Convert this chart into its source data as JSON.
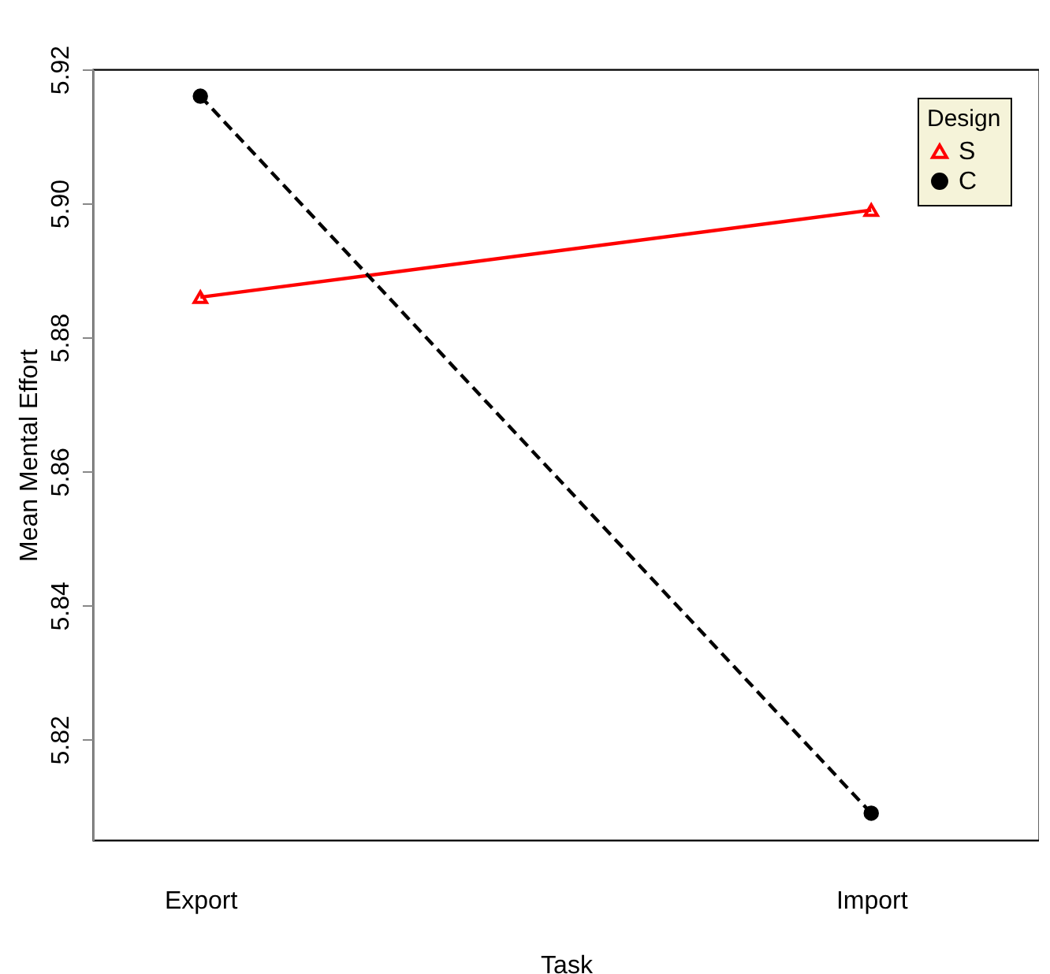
{
  "chart_data": {
    "type": "line",
    "xlabel": "Task",
    "ylabel": "Mean Mental Effort",
    "legend_title": "Design",
    "categories": [
      "Export",
      "Import"
    ],
    "series": [
      {
        "name": "S",
        "color": "#ff0000",
        "values": [
          5.886,
          5.899
        ],
        "marker": "triangle",
        "line_style": "solid"
      },
      {
        "name": "C",
        "color": "#000000",
        "values": [
          5.916,
          5.809
        ],
        "marker": "circle",
        "line_style": "dashed"
      }
    ],
    "ylim": [
      5.805,
      5.92
    ],
    "yticks": [
      {
        "value": 5.82,
        "label": "5.82"
      },
      {
        "value": 5.84,
        "label": "5.84"
      },
      {
        "value": 5.86,
        "label": "5.86"
      },
      {
        "value": 5.88,
        "label": "5.88"
      },
      {
        "value": 5.9,
        "label": "5.90"
      },
      {
        "value": 5.92,
        "label": "5.92"
      }
    ],
    "grid": false,
    "legend": "top right"
  }
}
